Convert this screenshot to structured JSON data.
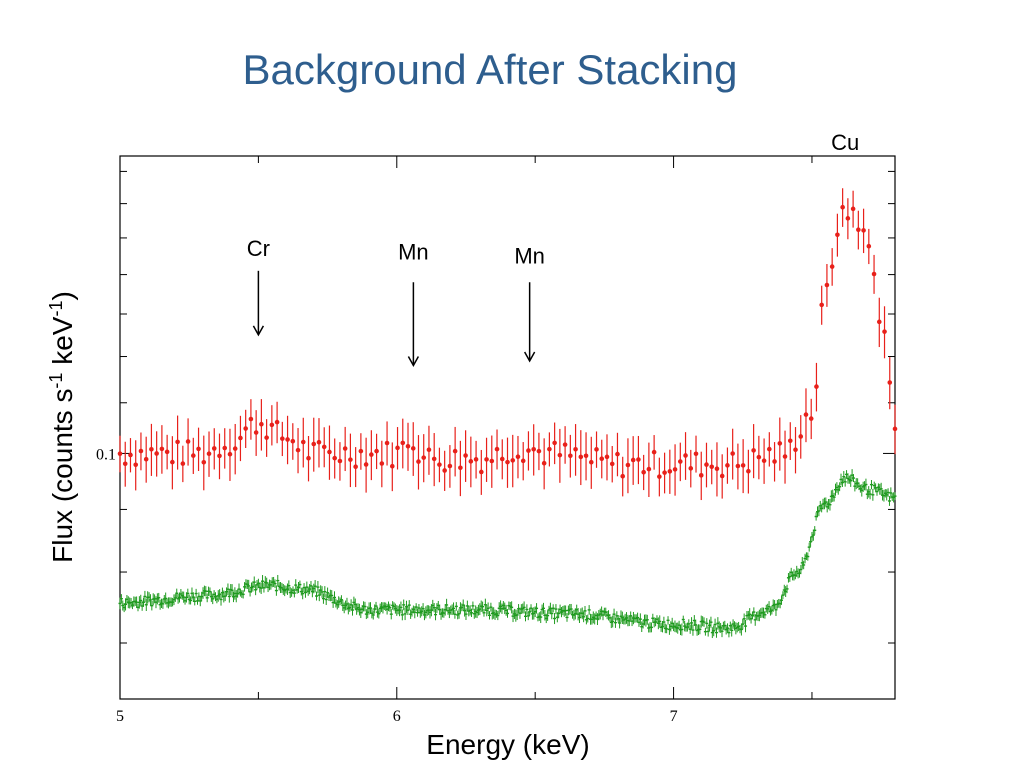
{
  "slide": {
    "title": "Background After Stacking"
  },
  "chart_data": {
    "type": "scatter",
    "title": "",
    "xlabel": "Energy (keV)",
    "ylabel_parts": [
      "Flux (counts s",
      "-1",
      " keV",
      "-1",
      ")"
    ],
    "xlim": [
      5.0,
      7.8
    ],
    "ylim": [
      0.063,
      0.175
    ],
    "yscale": "log",
    "x_ticks": [
      {
        "value": 5,
        "label": "5"
      },
      {
        "value": 6,
        "label": "6"
      },
      {
        "value": 7,
        "label": "7"
      }
    ],
    "y_ticks": [
      {
        "value": 0.1,
        "label": "0.1"
      }
    ],
    "x_minor_ticks": [
      5.5,
      6.5,
      7.5
    ],
    "y_minor_ticks": [
      0.07,
      0.08,
      0.09,
      0.11,
      0.12,
      0.13,
      0.14,
      0.15,
      0.16,
      0.17
    ],
    "grid": false,
    "series": [
      {
        "color": "#e8201a",
        "style": "points-with-errorbars",
        "knots": [
          [
            5.0,
            0.1
          ],
          [
            5.3,
            0.1
          ],
          [
            5.4,
            0.102
          ],
          [
            5.5,
            0.106
          ],
          [
            5.6,
            0.103
          ],
          [
            5.7,
            0.1
          ],
          [
            6.0,
            0.1
          ],
          [
            6.05,
            0.103
          ],
          [
            6.1,
            0.099
          ],
          [
            6.3,
            0.099
          ],
          [
            6.45,
            0.101
          ],
          [
            6.55,
            0.1
          ],
          [
            6.8,
            0.098
          ],
          [
            7.2,
            0.098
          ],
          [
            7.4,
            0.1
          ],
          [
            7.5,
            0.108
          ],
          [
            7.55,
            0.135
          ],
          [
            7.6,
            0.155
          ],
          [
            7.65,
            0.158
          ],
          [
            7.7,
            0.148
          ],
          [
            7.75,
            0.13
          ],
          [
            7.8,
            0.105
          ]
        ],
        "err_rel": 0.04
      },
      {
        "color": "#1f9a1f",
        "style": "dense-points-with-errorbars",
        "knots": [
          [
            5.0,
            0.0755
          ],
          [
            5.3,
            0.0765
          ],
          [
            5.55,
            0.078
          ],
          [
            5.65,
            0.0775
          ],
          [
            5.9,
            0.0745
          ],
          [
            6.3,
            0.0745
          ],
          [
            6.6,
            0.074
          ],
          [
            7.0,
            0.0725
          ],
          [
            7.2,
            0.072
          ],
          [
            7.35,
            0.0745
          ],
          [
            7.45,
            0.08
          ],
          [
            7.55,
            0.091
          ],
          [
            7.62,
            0.0955
          ],
          [
            7.7,
            0.0935
          ],
          [
            7.8,
            0.092
          ]
        ],
        "err_rel": 0.009
      }
    ],
    "annotations": [
      {
        "label": "Cr",
        "x": 5.5,
        "label_y": 0.145,
        "arrow_from": 0.141,
        "arrow_to": 0.125
      },
      {
        "label": "Mn",
        "x": 6.06,
        "label_y": 0.144,
        "arrow_from": 0.138,
        "arrow_to": 0.118
      },
      {
        "label": "Mn",
        "x": 6.48,
        "label_y": 0.143,
        "arrow_from": 0.138,
        "arrow_to": 0.119
      },
      {
        "label": "Cu",
        "x": 7.62,
        "label_y": 0.177
      }
    ]
  }
}
